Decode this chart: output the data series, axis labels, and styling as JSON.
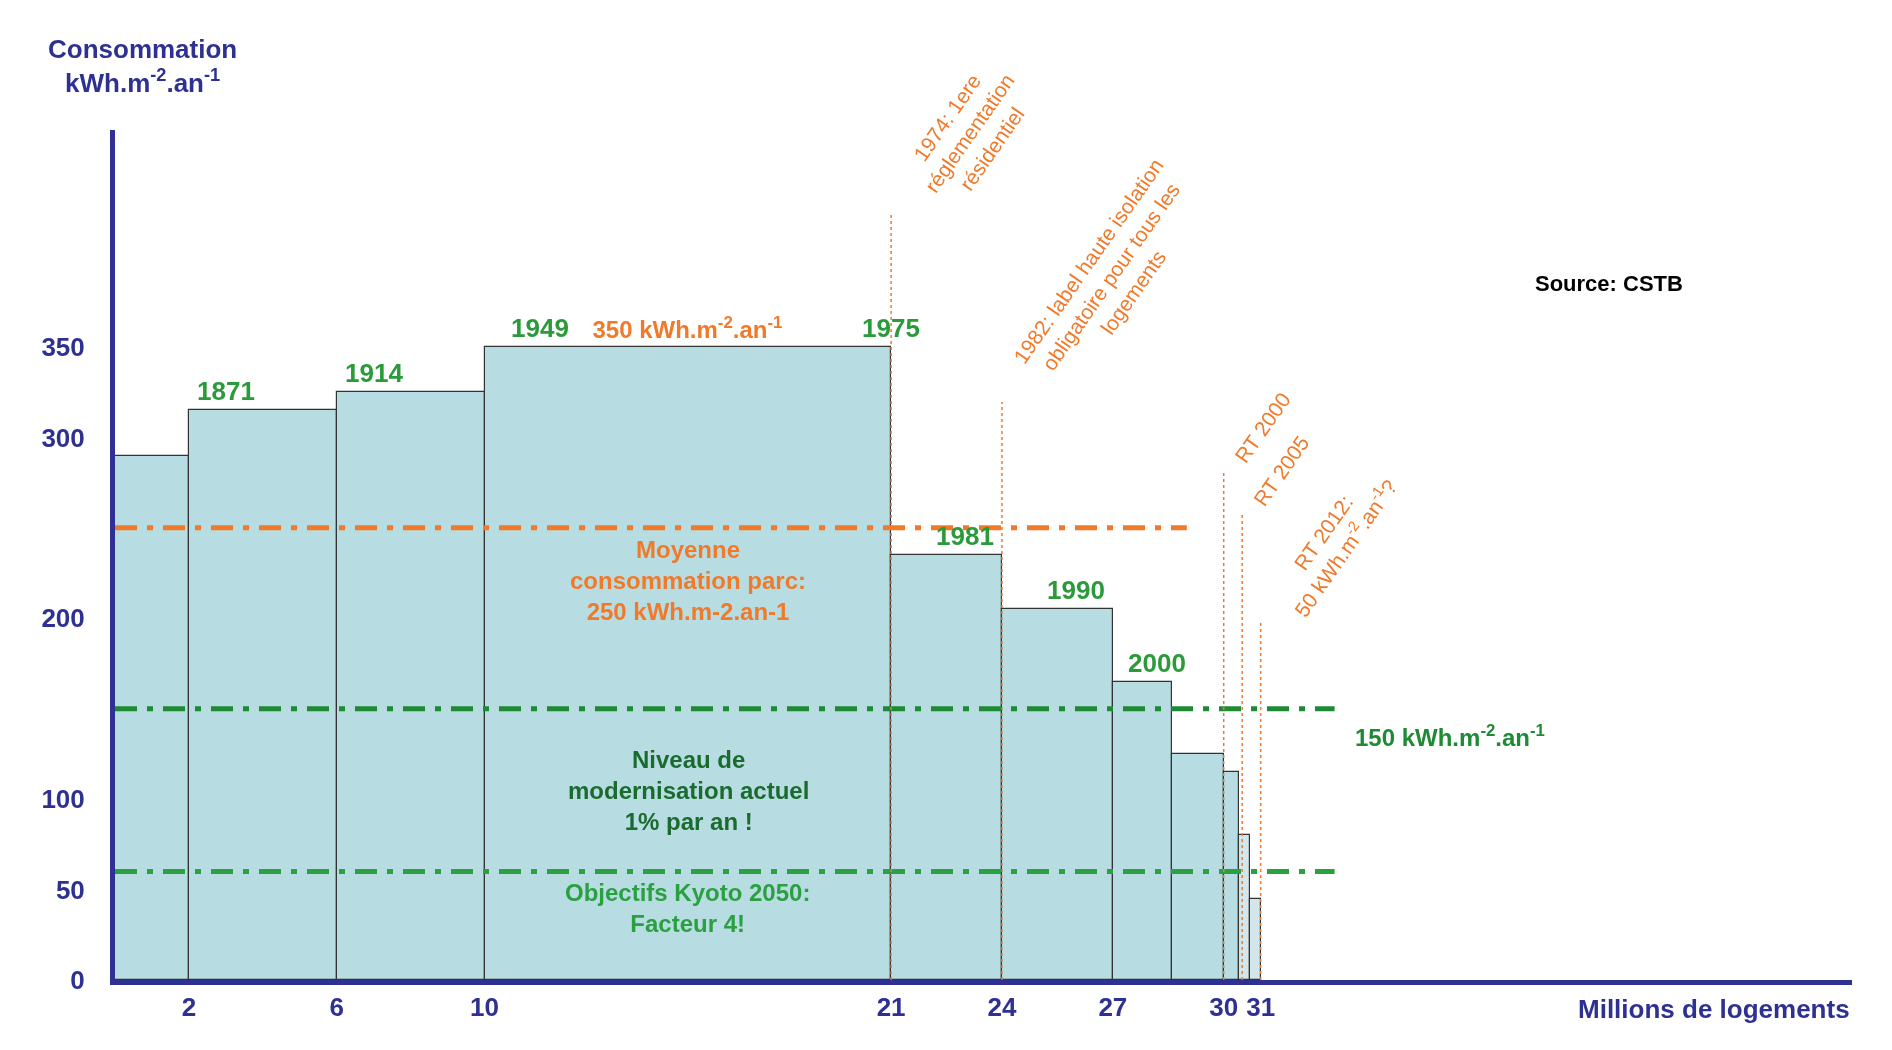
{
  "chart_data": {
    "type": "histogram",
    "ylabel": "Consommation\nkWh.m$^{-2}$.an$^{-1}$",
    "xlabel": "Millions de logements",
    "bins": [
      0,
      2,
      6,
      10,
      21,
      24,
      27,
      28.6,
      30,
      30.4,
      30.7,
      31
    ],
    "values": [
      290,
      315,
      325,
      350,
      235,
      205,
      165,
      125,
      115,
      80,
      45
    ],
    "colors": [
      "#b7dde3",
      "#b7dde3",
      "#b7dde3",
      "#b7dde3",
      "#b7dde3",
      "#b7dde3",
      "#b7dde3",
      "#b7dde3",
      "#b7dde3",
      "#d3e6ec",
      "#d3e6ec"
    ],
    "value_labels": [
      null,
      null,
      null,
      "350 kWh.m$^{-2}$.an$^{-1}$",
      null,
      null,
      null,
      null,
      null,
      null,
      null
    ],
    "xlim": [
      0,
      47
    ],
    "ylim": [
      0,
      470
    ],
    "xticks": [
      2,
      6,
      10,
      21,
      24,
      27,
      30,
      31
    ],
    "yticks": [
      0,
      50,
      100,
      200,
      300,
      350
    ],
    "ref_lines": [
      {
        "axis": "y",
        "value": 250,
        "label": "Moyenne\nconsommation parc:\n250 kWh.m-2.an-1",
        "color": "#f07a2a",
        "line_style": "dashed"
      },
      {
        "axis": "y",
        "value": 150,
        "label": "150 kWh.m$^{-2}$.an$^{-1}$",
        "color": "#1f8a34",
        "line_style": "dashed"
      },
      {
        "axis": "y",
        "value": 60,
        "label": "Objectifs Kyoto 2050:\nFacteur 4!",
        "color": "#2aa040",
        "line_style": "dashed"
      },
      {
        "axis": "x",
        "value": 21,
        "color": "#f07a2a",
        "line_style": "dotted"
      },
      {
        "axis": "x",
        "value": 24,
        "color": "#f07a2a",
        "line_style": "dotted"
      },
      {
        "axis": "x",
        "value": 30,
        "color": "#f07a2a",
        "line_style": "dotted"
      },
      {
        "axis": "x",
        "value": 30.5,
        "color": "#f07a2a",
        "line_style": "dotted"
      },
      {
        "axis": "x",
        "value": 31,
        "color": "#f07a2a",
        "line_style": "dotted"
      }
    ],
    "annotations": [
      {
        "text": "1871",
        "x": 3,
        "y": 315
      },
      {
        "text": "1914",
        "x": 7,
        "y": 325
      },
      {
        "text": "1949",
        "x": 11.5,
        "y": 350
      },
      {
        "text": "1975",
        "x": 21,
        "y": 350
      },
      {
        "text": "1981",
        "x": 23,
        "y": 235
      },
      {
        "text": "1990",
        "x": 26,
        "y": 205
      },
      {
        "text": "2000",
        "x": 28.2,
        "y": 165
      },
      "Niveau de\nmodernisation actuel\n1% par an !",
      "1974: 1ere\nréglementation\nrésidentiel",
      "1982: label haute isolation\nobligatoire pour tous les\nlogements",
      "RT 2000",
      "RT 2005",
      "RT 2012:\n50 kWh.m$^{-2}$.an$^{-1}$?",
      "Source: CSTB"
    ]
  }
}
